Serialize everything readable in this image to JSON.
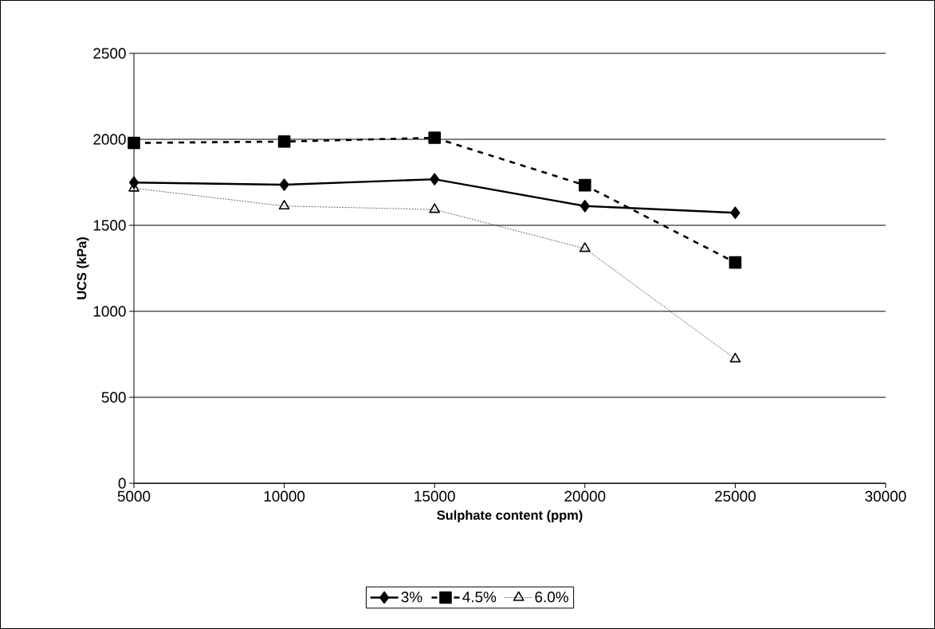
{
  "chart_data": {
    "type": "line",
    "xlabel": "Sulphate content (ppm)",
    "ylabel": "UCS (kPa)",
    "x": [
      5000,
      10000,
      15000,
      20000,
      25000
    ],
    "series": [
      {
        "name": "3%",
        "color": "#000000",
        "marker": "diamond",
        "line_style": "solid",
        "values": [
          1749,
          1736,
          1768,
          1612,
          1573
        ]
      },
      {
        "name": "4.5%",
        "color": "#000000",
        "marker": "square",
        "line_style": "dashed",
        "values": [
          1979,
          1987,
          2009,
          1733,
          1284
        ]
      },
      {
        "name": "6.0%",
        "color": "#000000",
        "marker": "triangle",
        "line_style": "dotted",
        "values": [
          1716,
          1612,
          1592,
          1365,
          723
        ]
      }
    ],
    "xlim": [
      5000,
      30000
    ],
    "xticks": [
      5000,
      10000,
      15000,
      20000,
      25000,
      30000
    ],
    "ylim": [
      0,
      2500
    ],
    "yticks": [
      0,
      500,
      1000,
      1500,
      2000,
      2500
    ],
    "grid": "y",
    "legend": "bottom"
  }
}
